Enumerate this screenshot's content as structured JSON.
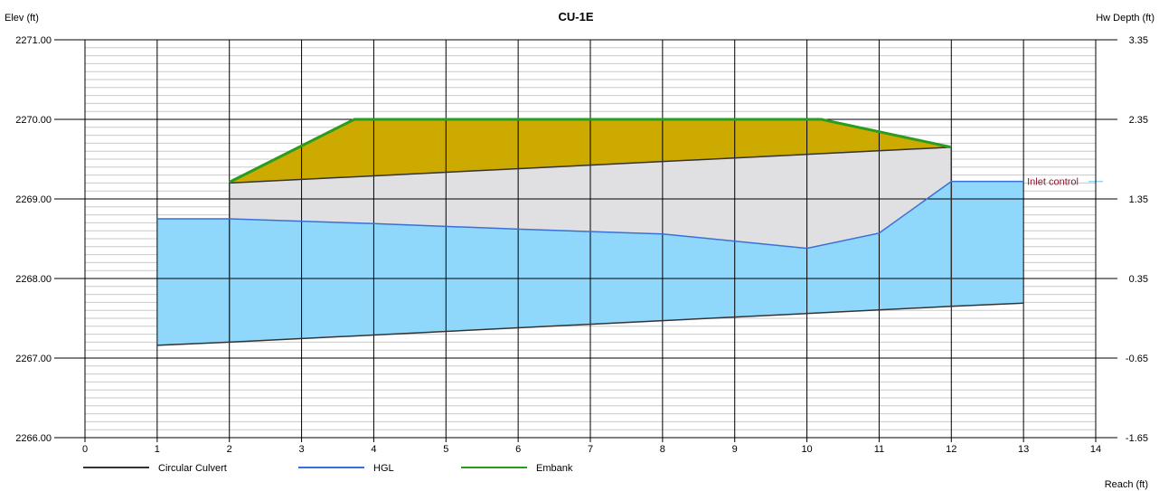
{
  "chart_data": {
    "type": "line",
    "title": "CU-1E",
    "xlabel": "Reach (ft)",
    "ylabel": "Elev (ft)",
    "y2label": "Hw Depth (ft)",
    "xlim": [
      0,
      14
    ],
    "ylim": [
      2266,
      2271
    ],
    "y2lim": [
      -1.65,
      3.35
    ],
    "x_ticks": [
      0,
      1,
      2,
      3,
      4,
      5,
      6,
      7,
      8,
      9,
      10,
      11,
      12,
      13,
      14
    ],
    "y_ticks": [
      "2266.00",
      "2267.00",
      "2268.00",
      "2269.00",
      "2270.00",
      "2271.00"
    ],
    "y2_ticks": [
      "-1.65",
      "-0.65",
      "0.35",
      "1.35",
      "2.35",
      "3.35"
    ],
    "grid": true,
    "legend_position": "bottom-left",
    "series": [
      {
        "name": "Circular Culvert",
        "color": "#333333",
        "invert": {
          "x": [
            1,
            2,
            8,
            12,
            13
          ],
          "y": [
            2267.16,
            2267.2,
            2267.47,
            2267.65,
            2267.69
          ]
        },
        "crown": {
          "x": [
            2,
            12
          ],
          "y": [
            2269.2,
            2269.65
          ]
        }
      },
      {
        "name": "HGL",
        "color": "#3a6fd8",
        "x": [
          1,
          2,
          4,
          6,
          8,
          10,
          11,
          12,
          13
        ],
        "y": [
          2268.75,
          2268.75,
          2268.69,
          2268.62,
          2268.56,
          2268.38,
          2268.57,
          2269.22,
          2269.22
        ]
      },
      {
        "name": "Embank",
        "color": "#2a9d1f",
        "x": [
          2,
          3.73,
          10.2,
          12
        ],
        "y": [
          2269.21,
          2270.0,
          2270.0,
          2269.65
        ]
      }
    ],
    "annotations": [
      {
        "text": "Inlet control",
        "x": 13.05,
        "y": 2269.22
      }
    ],
    "fills": {
      "water": "#8fd8fb",
      "embankment": "#ccaa00",
      "pipe": "#e0e0e3"
    }
  }
}
